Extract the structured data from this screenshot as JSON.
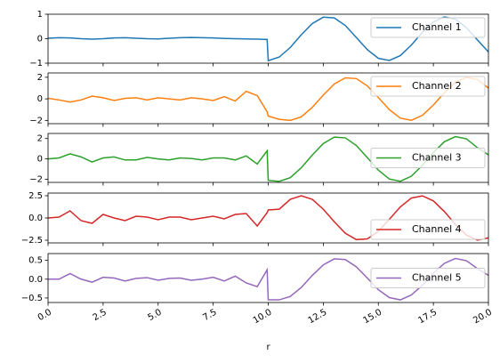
{
  "chart_data": [
    {
      "type": "line",
      "x": [
        0,
        0.5,
        1,
        1.5,
        2,
        2.5,
        3,
        3.5,
        4,
        4.5,
        5,
        5.5,
        6,
        6.5,
        7,
        7.5,
        8,
        8.5,
        9,
        9.5,
        9.95,
        10,
        10.5,
        11,
        11.5,
        12,
        12.5,
        13,
        13.5,
        14,
        14.5,
        15,
        15.5,
        16,
        16.5,
        17,
        17.5,
        18,
        18.5,
        19,
        19.5,
        20
      ],
      "xlim": [
        0,
        20
      ],
      "series": [
        {
          "name": "Channel 1",
          "color": "#1f77b4",
          "values": [
            0.02,
            0.04,
            0.03,
            0.0,
            -0.02,
            0.0,
            0.03,
            0.04,
            0.02,
            0.0,
            -0.01,
            0.02,
            0.04,
            0.05,
            0.04,
            0.03,
            0.01,
            0.0,
            -0.01,
            -0.02,
            -0.03,
            -0.9,
            -0.75,
            -0.36,
            0.16,
            0.62,
            0.88,
            0.85,
            0.54,
            0.05,
            -0.45,
            -0.8,
            -0.89,
            -0.69,
            -0.26,
            0.26,
            0.69,
            0.89,
            0.8,
            0.45,
            -0.05,
            -0.54
          ]
        }
      ],
      "ylim": [
        -1,
        1
      ],
      "yticks": [
        {
          "value": -1,
          "label": "−1"
        },
        0,
        1
      ],
      "legend": "upper right"
    },
    {
      "type": "line",
      "x": [
        0,
        0.5,
        1,
        1.5,
        2,
        2.5,
        3,
        3.5,
        4,
        4.5,
        5,
        5.5,
        6,
        6.5,
        7,
        7.5,
        8,
        8.5,
        9,
        9.5,
        9.95,
        10,
        10.5,
        11,
        11.5,
        12,
        12.5,
        13,
        13.5,
        14,
        14.5,
        15,
        15.5,
        16,
        16.5,
        17,
        17.5,
        18,
        18.5,
        19,
        19.5,
        20
      ],
      "xlim": [
        0,
        20
      ],
      "series": [
        {
          "name": "Channel 2",
          "color": "#ff7f0e",
          "values": [
            0.05,
            -0.1,
            -0.3,
            -0.1,
            0.25,
            0.1,
            -0.15,
            0.05,
            0.1,
            -0.1,
            0.1,
            0.0,
            -0.1,
            0.1,
            0.0,
            -0.15,
            0.2,
            -0.2,
            0.7,
            0.3,
            -1.2,
            -1.6,
            -1.9,
            -2,
            -1.67,
            -0.79,
            0.35,
            1.38,
            1.95,
            1.88,
            1.2,
            0.12,
            -1.0,
            -1.79,
            -1.99,
            -1.53,
            -0.57,
            0.57,
            1.53,
            1.99,
            1.79,
            1.0
          ]
        }
      ],
      "ylim": [
        -2.3,
        2.4
      ],
      "yticks": [
        {
          "value": -2,
          "label": "−2"
        },
        0,
        2
      ],
      "legend": "upper right"
    },
    {
      "type": "line",
      "x": [
        0,
        0.5,
        1,
        1.5,
        2,
        2.5,
        3,
        3.5,
        4,
        4.5,
        5,
        5.5,
        6,
        6.5,
        7,
        7.5,
        8,
        8.5,
        9,
        9.5,
        9.95,
        10,
        10.5,
        11,
        11.5,
        12,
        12.5,
        13,
        13.5,
        14,
        14.5,
        15,
        15.5,
        16,
        16.5,
        17,
        17.5,
        18,
        18.5,
        19,
        19.5,
        20
      ],
      "xlim": [
        0,
        20
      ],
      "series": [
        {
          "name": "Channel 3",
          "color": "#2ca02c",
          "values": [
            0.0,
            0.1,
            0.5,
            0.2,
            -0.3,
            0.1,
            0.2,
            -0.1,
            -0.1,
            0.15,
            0.0,
            -0.1,
            0.1,
            0.05,
            -0.1,
            0.1,
            0.1,
            -0.1,
            0.3,
            -0.5,
            0.8,
            -2.1,
            -2.2,
            -1.84,
            -0.87,
            0.38,
            1.51,
            2.14,
            2.07,
            1.32,
            0.13,
            -1.1,
            -1.97,
            -2.19,
            -1.69,
            -0.63,
            0.63,
            1.69,
            2.19,
            1.97,
            1.1,
            0.4
          ]
        }
      ],
      "ylim": [
        -2.3,
        2.5
      ],
      "yticks": [
        {
          "value": -2,
          "label": "−2"
        },
        0,
        2
      ],
      "legend": "center right"
    },
    {
      "type": "line",
      "x": [
        0,
        0.5,
        1,
        1.5,
        2,
        2.5,
        3,
        3.5,
        4,
        4.5,
        5,
        5.5,
        6,
        6.5,
        7,
        7.5,
        8,
        8.5,
        9,
        9.5,
        9.95,
        10,
        10.5,
        11,
        11.5,
        12,
        12.5,
        13,
        13.5,
        14,
        14.5,
        15,
        15.5,
        16,
        16.5,
        17,
        17.5,
        18,
        18.5,
        19,
        19.5,
        20
      ],
      "xlim": [
        0,
        20
      ],
      "series": [
        {
          "name": "Channel 4",
          "color": "#d62728",
          "values": [
            0,
            0.1,
            0.8,
            -0.3,
            -0.6,
            0.4,
            0.0,
            -0.3,
            0.2,
            0.1,
            -0.2,
            0.1,
            0.1,
            -0.2,
            0.0,
            0.2,
            -0.1,
            0.4,
            0.5,
            -0.9,
            0.6,
            0.9,
            0.99,
            2.09,
            2.5,
            2.09,
            0.99,
            -0.43,
            -1.72,
            -2.43,
            -2.35,
            -1.5,
            -0.15,
            1.25,
            2.24,
            2.49,
            1.92,
            0.72,
            -0.72,
            -1.92,
            -2.49,
            -2.24
          ]
        }
      ],
      "ylim": [
        -2.8,
        2.8
      ],
      "yticks": [
        {
          "value": -2.5,
          "label": "−2.5"
        },
        {
          "value": 0,
          "label": "0.0"
        },
        2.5
      ],
      "legend": "lower right"
    },
    {
      "type": "line",
      "x": [
        0,
        0.5,
        1,
        1.5,
        2,
        2.5,
        3,
        3.5,
        4,
        4.5,
        5,
        5.5,
        6,
        6.5,
        7,
        7.5,
        8,
        8.5,
        9,
        9.5,
        9.95,
        10,
        10.5,
        11,
        11.5,
        12,
        12.5,
        13,
        13.5,
        14,
        14.5,
        15,
        15.5,
        16,
        16.5,
        17,
        17.5,
        18,
        18.5,
        19,
        19.5,
        20
      ],
      "xlim": [
        0,
        20
      ],
      "series": [
        {
          "name": "Channel 5",
          "color": "#9467bd",
          "values": [
            0.0,
            0.0,
            0.15,
            0.0,
            -0.08,
            0.05,
            0.03,
            -0.05,
            0.02,
            0.04,
            -0.03,
            0.02,
            0.03,
            -0.03,
            0.0,
            0.05,
            -0.05,
            0.08,
            -0.1,
            -0.2,
            0.25,
            -0.55,
            -0.55,
            -0.46,
            -0.22,
            0.1,
            0.38,
            0.54,
            0.52,
            0.33,
            0.03,
            -0.28,
            -0.49,
            -0.55,
            -0.42,
            -0.16,
            0.16,
            0.42,
            0.55,
            0.49,
            0.28,
            0.1
          ]
        }
      ],
      "ylim": [
        -0.62,
        0.68
      ],
      "yticks": [
        {
          "value": -0.5,
          "label": "−0.5"
        },
        {
          "value": 0,
          "label": "0.0"
        },
        0.5
      ],
      "legend": "center right",
      "xlabel": "r",
      "xticks": [
        {
          "value": 0,
          "label": "0.0"
        },
        2.5,
        {
          "value": 5,
          "label": "5.0"
        },
        7.5,
        {
          "value": 10,
          "label": "10.0"
        },
        12.5,
        {
          "value": 15,
          "label": "15.0"
        },
        17.5,
        {
          "value": 20,
          "label": "20.0"
        }
      ]
    }
  ]
}
